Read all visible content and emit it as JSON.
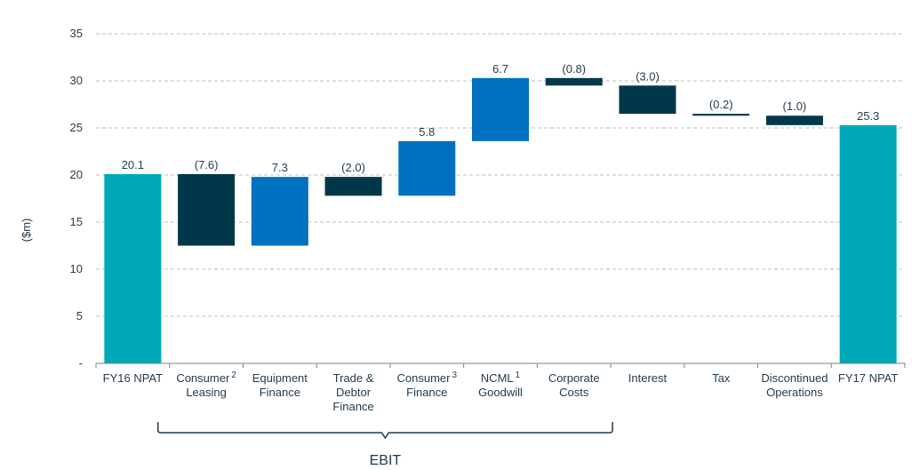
{
  "chart_data": {
    "type": "bar",
    "subtype": "waterfall",
    "ylabel": "($m)",
    "ylim": [
      0,
      35
    ],
    "yticks": [
      {
        "value": 0,
        "label": "-"
      },
      {
        "value": 5,
        "label": "5"
      },
      {
        "value": 10,
        "label": "10"
      },
      {
        "value": 15,
        "label": "15"
      },
      {
        "value": 20,
        "label": "20"
      },
      {
        "value": 25,
        "label": "25"
      },
      {
        "value": 30,
        "label": "30"
      },
      {
        "value": 35,
        "label": "35"
      }
    ],
    "grid": true,
    "colors": {
      "total": "#00A9B7",
      "decrease": "#00384A",
      "increase": "#0070C0",
      "axis": "#808080",
      "grid": "#BFBFBF",
      "text": "#1f3a4d"
    },
    "bars": [
      {
        "category": [
          "FY16 NPAT"
        ],
        "sup": "",
        "kind": "total",
        "start": 0,
        "end": 20.1,
        "label": "20.1"
      },
      {
        "category": [
          "Consumer",
          "Leasing"
        ],
        "sup": "2",
        "kind": "decrease",
        "start": 20.1,
        "end": 12.5,
        "label": "(7.6)"
      },
      {
        "category": [
          "Equipment",
          "Finance"
        ],
        "sup": "",
        "kind": "increase",
        "start": 12.5,
        "end": 19.8,
        "label": "7.3"
      },
      {
        "category": [
          "Trade &",
          "Debtor",
          "Finance"
        ],
        "sup": "",
        "kind": "decrease",
        "start": 19.8,
        "end": 17.8,
        "label": "(2.0)"
      },
      {
        "category": [
          "Consumer",
          "Finance"
        ],
        "sup": "3",
        "kind": "increase",
        "start": 17.8,
        "end": 23.6,
        "label": "5.8"
      },
      {
        "category": [
          "NCML",
          "Goodwill"
        ],
        "sup": "1",
        "kind": "increase",
        "start": 23.6,
        "end": 30.3,
        "label": "6.7"
      },
      {
        "category": [
          "Corporate",
          "Costs"
        ],
        "sup": "",
        "kind": "decrease",
        "start": 30.3,
        "end": 29.5,
        "label": "(0.8)"
      },
      {
        "category": [
          "Interest"
        ],
        "sup": "",
        "kind": "decrease",
        "start": 29.5,
        "end": 26.5,
        "label": "(3.0)"
      },
      {
        "category": [
          "Tax"
        ],
        "sup": "",
        "kind": "decrease",
        "start": 26.5,
        "end": 26.3,
        "label": "(0.2)"
      },
      {
        "category": [
          "Discontinued",
          "Operations"
        ],
        "sup": "",
        "kind": "decrease",
        "start": 26.3,
        "end": 25.3,
        "label": "(1.0)"
      },
      {
        "category": [
          "FY17 NPAT"
        ],
        "sup": "",
        "kind": "total",
        "start": 0,
        "end": 25.3,
        "label": "25.3"
      }
    ],
    "annotations": [
      {
        "type": "brace",
        "from_index": 1,
        "to_index": 6,
        "label": "EBIT"
      }
    ]
  }
}
